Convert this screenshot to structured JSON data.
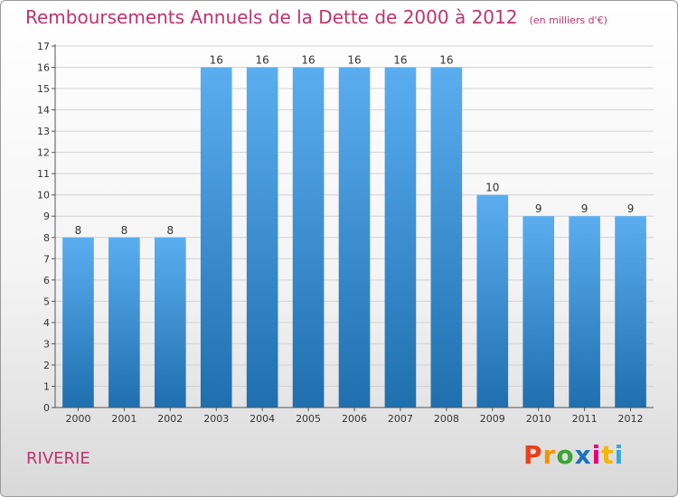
{
  "page": {
    "commune": "RIVERIE",
    "logo": {
      "letters": [
        "P",
        "r",
        "o",
        "x",
        "i",
        "t",
        "i"
      ],
      "colors": [
        "#e8401c",
        "#f29400",
        "#3aa535",
        "#1d71b8",
        "#e6007e",
        "#f7b500",
        "#35a8e0"
      ]
    }
  },
  "chart_data": {
    "type": "bar",
    "title": "Remboursements Annuels de la Dette de 2000 à 2012",
    "unit": "(en milliers d'€)",
    "categories": [
      "2000",
      "2001",
      "2002",
      "2003",
      "2004",
      "2005",
      "2006",
      "2007",
      "2008",
      "2009",
      "2010",
      "2011",
      "2012"
    ],
    "values": [
      8,
      8,
      8,
      16,
      16,
      16,
      16,
      16,
      16,
      10,
      9,
      9,
      9
    ],
    "ylim": [
      0,
      17
    ],
    "yticks": [
      0,
      1,
      2,
      3,
      4,
      5,
      6,
      7,
      8,
      9,
      10,
      11,
      12,
      13,
      14,
      15,
      16,
      17
    ],
    "grid": true,
    "colors": {
      "bar_top": "#5aaef0",
      "bar_bottom": "#1f6fae",
      "grid": "#d2d2d2",
      "axis": "#555555",
      "text": "#333333"
    }
  }
}
